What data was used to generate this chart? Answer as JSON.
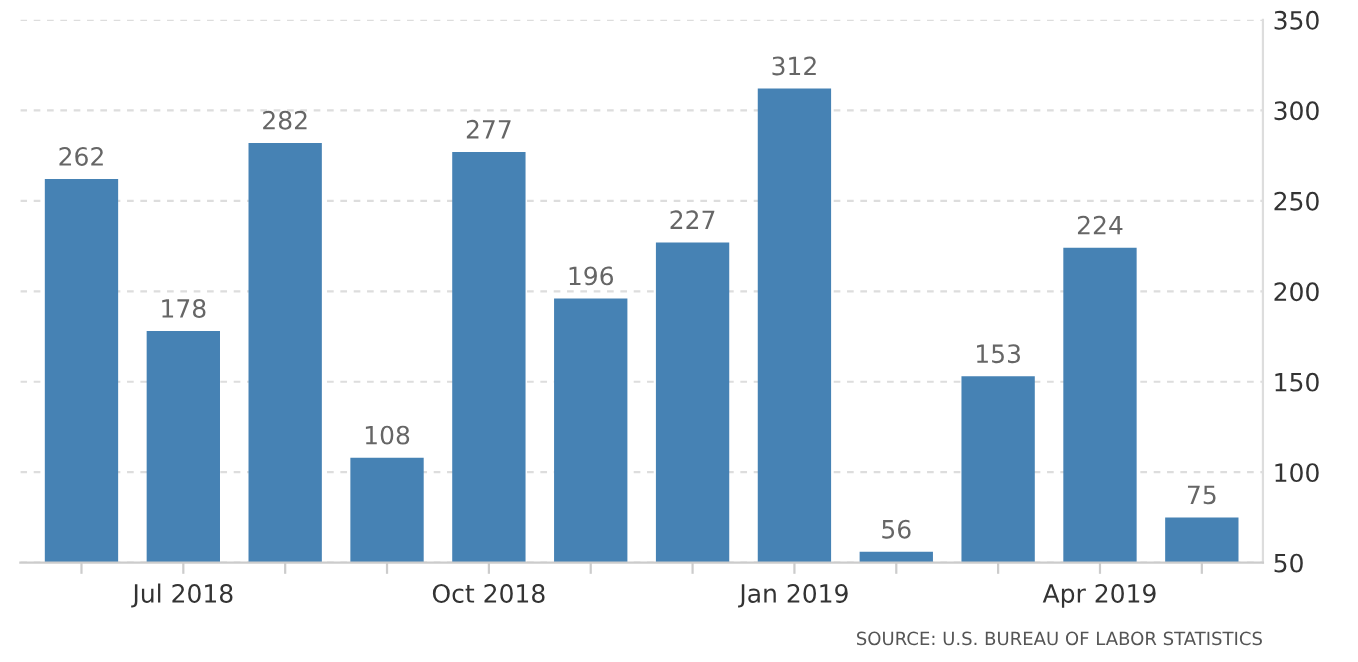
{
  "chart_data": {
    "type": "bar",
    "categories": [
      null,
      "Jul 2018",
      null,
      null,
      "Oct 2018",
      null,
      null,
      "Jan 2019",
      null,
      null,
      "Apr 2019",
      null
    ],
    "values": [
      262,
      178,
      282,
      108,
      277,
      196,
      227,
      312,
      56,
      153,
      224,
      75
    ],
    "color": "#4682b4",
    "data_labels": true,
    "ylim": [
      50,
      350
    ],
    "yticks": [
      50,
      100,
      150,
      200,
      250,
      300,
      350
    ],
    "grid": "y",
    "annotations": [
      "SOURCE: U.S. BUREAU OF LABOR STATISTICS"
    ]
  }
}
